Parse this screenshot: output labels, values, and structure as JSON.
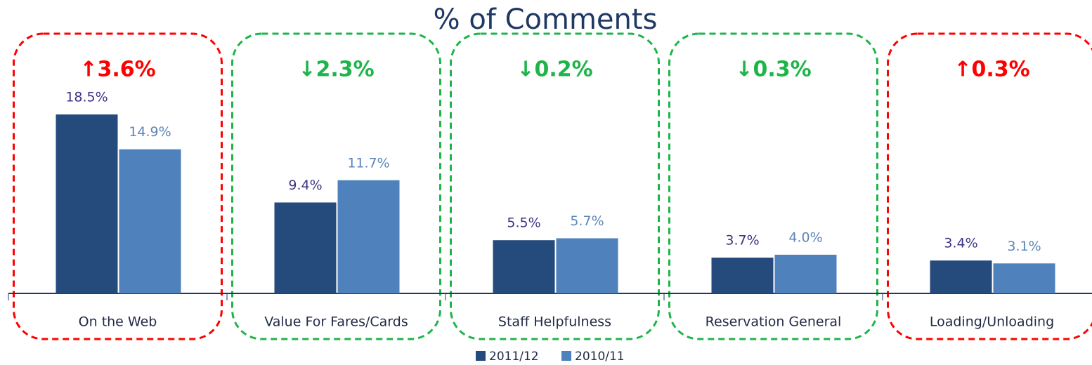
{
  "chart_data": {
    "type": "bar",
    "title": "% of Comments",
    "categories": [
      "On the Web",
      "Value For Fares/Cards",
      "Staff Helpfulness",
      "Reservation General",
      "Loading/Unloading"
    ],
    "series": [
      {
        "name": "2011/12",
        "color": "#254a7c",
        "values": [
          18.5,
          9.4,
          5.5,
          3.7,
          3.4
        ],
        "value_labels": [
          "18.5%",
          "9.4%",
          "5.5%",
          "3.7%",
          "3.4%"
        ],
        "label_color": "#3b3486"
      },
      {
        "name": "2010/11",
        "color": "#4f81bd",
        "values": [
          14.9,
          11.7,
          5.7,
          4.0,
          3.1
        ],
        "value_labels": [
          "14.9%",
          "11.7%",
          "5.7%",
          "4.0%",
          "3.1%"
        ],
        "label_color": "#5b86b8"
      }
    ],
    "annotations": [
      {
        "text": "↑3.6%",
        "color": "#ff0000"
      },
      {
        "text": "↓2.3%",
        "color": "#1db54a"
      },
      {
        "text": "↓0.2%",
        "color": "#1db54a"
      },
      {
        "text": "↓0.3%",
        "color": "#1db54a"
      },
      {
        "text": "↑0.3%",
        "color": "#ff0000"
      }
    ],
    "legend": "bottom"
  }
}
